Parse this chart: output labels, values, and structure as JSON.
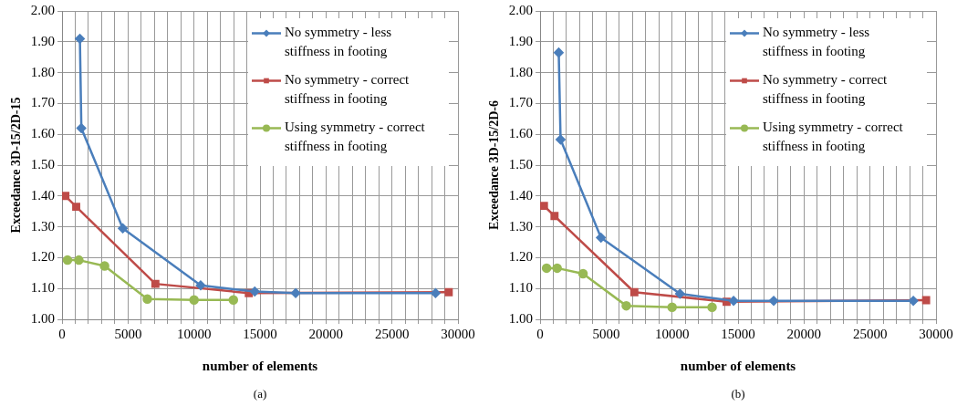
{
  "chart_data": [
    {
      "type": "line",
      "xlabel": "number of elements",
      "ylabel": "Exceedance 3D-15/2D-15",
      "annotations": [
        "(a)"
      ],
      "xlim": [
        0,
        30000
      ],
      "ylim": [
        1.0,
        2.0
      ],
      "xticks": [
        0,
        {
          "value": 1000,
          "label": null
        },
        {
          "value": 2000,
          "label": null
        },
        {
          "value": 3000,
          "label": null
        },
        {
          "value": 4000,
          "label": null
        },
        5000,
        {
          "value": 6000,
          "label": null
        },
        {
          "value": 7000,
          "label": null
        },
        {
          "value": 8000,
          "label": null
        },
        {
          "value": 9000,
          "label": null
        },
        10000,
        {
          "value": 11000,
          "label": null
        },
        {
          "value": 12000,
          "label": null
        },
        {
          "value": 13000,
          "label": null
        },
        {
          "value": 14000,
          "label": null
        },
        15000,
        {
          "value": 16000,
          "label": null
        },
        {
          "value": 17000,
          "label": null
        },
        {
          "value": 18000,
          "label": null
        },
        {
          "value": 19000,
          "label": null
        },
        20000,
        {
          "value": 21000,
          "label": null
        },
        {
          "value": 22000,
          "label": null
        },
        {
          "value": 23000,
          "label": null
        },
        {
          "value": 24000,
          "label": null
        },
        25000,
        {
          "value": 26000,
          "label": null
        },
        {
          "value": 27000,
          "label": null
        },
        {
          "value": 28000,
          "label": null
        },
        {
          "value": 29000,
          "label": null
        },
        30000
      ],
      "yticks": [
        {
          "value": 1.0,
          "label": "1.00"
        },
        {
          "value": 1.1,
          "label": "1.10"
        },
        {
          "value": 1.2,
          "label": "1.20"
        },
        {
          "value": 1.3,
          "label": "1.30"
        },
        {
          "value": 1.4,
          "label": "1.40"
        },
        {
          "value": 1.5,
          "label": "1.50"
        },
        {
          "value": 1.6,
          "label": "1.60"
        },
        {
          "value": 1.7,
          "label": "1.70"
        },
        {
          "value": 1.8,
          "label": "1.80"
        },
        {
          "value": 1.9,
          "label": "1.90"
        },
        {
          "value": 2.0,
          "label": "2.00"
        }
      ],
      "grid": true,
      "legend": "top right",
      "line_style": "solid",
      "series": [
        {
          "name": "No symmetry - less stiffness in footing",
          "color": "#4a7ebb",
          "marker": "diamond",
          "x": [
            1350,
            1460,
            4600,
            10500,
            14600,
            17700,
            28300
          ],
          "values": [
            1.91,
            1.62,
            1.295,
            1.11,
            1.09,
            1.085,
            1.085
          ]
        },
        {
          "name": "No symmetry - correct stiffness in footing",
          "color": "#be4b48",
          "marker": "square",
          "x": [
            250,
            1070,
            7070,
            14150,
            29300
          ],
          "values": [
            1.4,
            1.365,
            1.115,
            1.085,
            1.088
          ]
        },
        {
          "name": "Using symmetry - correct stiffness in footing",
          "color": "#98b954",
          "marker": "circle",
          "x": [
            410,
            1270,
            3220,
            6460,
            10000,
            12980
          ],
          "values": [
            1.192,
            1.192,
            1.173,
            1.066,
            1.063,
            1.063
          ]
        }
      ]
    },
    {
      "type": "line",
      "xlabel": "number of elements",
      "ylabel": "Exceedance 3D-15/2D-6",
      "annotations": [
        "(b)"
      ],
      "xlim": [
        0,
        30000
      ],
      "ylim": [
        1.0,
        2.0
      ],
      "xticks": [
        0,
        {
          "value": 1000,
          "label": null
        },
        {
          "value": 2000,
          "label": null
        },
        {
          "value": 3000,
          "label": null
        },
        {
          "value": 4000,
          "label": null
        },
        5000,
        {
          "value": 6000,
          "label": null
        },
        {
          "value": 7000,
          "label": null
        },
        {
          "value": 8000,
          "label": null
        },
        {
          "value": 9000,
          "label": null
        },
        10000,
        {
          "value": 11000,
          "label": null
        },
        {
          "value": 12000,
          "label": null
        },
        {
          "value": 13000,
          "label": null
        },
        {
          "value": 14000,
          "label": null
        },
        15000,
        {
          "value": 16000,
          "label": null
        },
        {
          "value": 17000,
          "label": null
        },
        {
          "value": 18000,
          "label": null
        },
        {
          "value": 19000,
          "label": null
        },
        20000,
        {
          "value": 21000,
          "label": null
        },
        {
          "value": 22000,
          "label": null
        },
        {
          "value": 23000,
          "label": null
        },
        {
          "value": 24000,
          "label": null
        },
        25000,
        {
          "value": 26000,
          "label": null
        },
        {
          "value": 27000,
          "label": null
        },
        {
          "value": 28000,
          "label": null
        },
        {
          "value": 29000,
          "label": null
        },
        30000
      ],
      "yticks": [
        {
          "value": 1.0,
          "label": "1.00"
        },
        {
          "value": 1.1,
          "label": "1.10"
        },
        {
          "value": 1.2,
          "label": "1.20"
        },
        {
          "value": 1.3,
          "label": "1.30"
        },
        {
          "value": 1.4,
          "label": "1.40"
        },
        {
          "value": 1.5,
          "label": "1.50"
        },
        {
          "value": 1.6,
          "label": "1.60"
        },
        {
          "value": 1.7,
          "label": "1.70"
        },
        {
          "value": 1.8,
          "label": "1.80"
        },
        {
          "value": 1.9,
          "label": "1.90"
        },
        {
          "value": 2.0,
          "label": "2.00"
        }
      ],
      "grid": true,
      "legend": "top right",
      "line_style": "solid",
      "series": [
        {
          "name": "No symmetry - less stiffness in footing",
          "color": "#4a7ebb",
          "marker": "diamond",
          "x": [
            1410,
            1550,
            4610,
            10600,
            14660,
            17700,
            28280
          ],
          "values": [
            1.865,
            1.583,
            1.265,
            1.083,
            1.06,
            1.06,
            1.06
          ]
        },
        {
          "name": "No symmetry - correct stiffness in footing",
          "color": "#be4b48",
          "marker": "square",
          "x": [
            290,
            1090,
            7140,
            14130,
            29250
          ],
          "values": [
            1.368,
            1.335,
            1.088,
            1.057,
            1.062
          ]
        },
        {
          "name": "Using symmetry - correct stiffness in footing",
          "color": "#98b954",
          "marker": "circle",
          "x": [
            490,
            1290,
            3250,
            6530,
            10000,
            13030
          ],
          "values": [
            1.166,
            1.166,
            1.148,
            1.044,
            1.039,
            1.039
          ]
        }
      ]
    }
  ]
}
